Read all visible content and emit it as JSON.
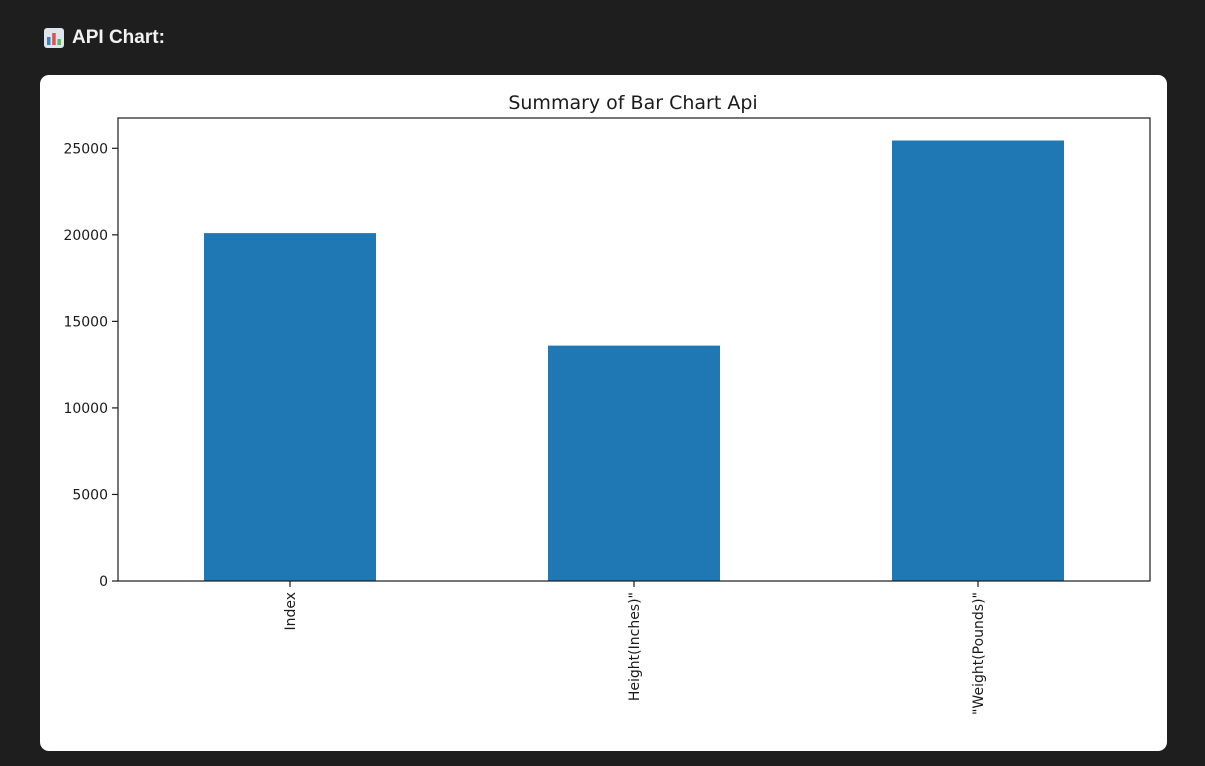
{
  "header": {
    "title": "API Chart:",
    "icon": "bar-chart-icon"
  },
  "colors": {
    "bar": "#1f77b4",
    "page_background": "#1e1e1e",
    "card_background": "#ffffff"
  },
  "chart_data": {
    "type": "bar",
    "title": "Summary of Bar Chart Api",
    "categories": [
      "Index",
      "Height(Inches)\"",
      "\"Weight(Pounds)\""
    ],
    "values": [
      20100,
      13600,
      25450
    ],
    "xlabel": "",
    "ylabel": "",
    "ylim": [
      0,
      26750
    ],
    "yticks": [
      0,
      5000,
      10000,
      15000,
      20000,
      25000
    ],
    "x_tick_rotation": "vertical",
    "grid": false,
    "legend": "none"
  }
}
